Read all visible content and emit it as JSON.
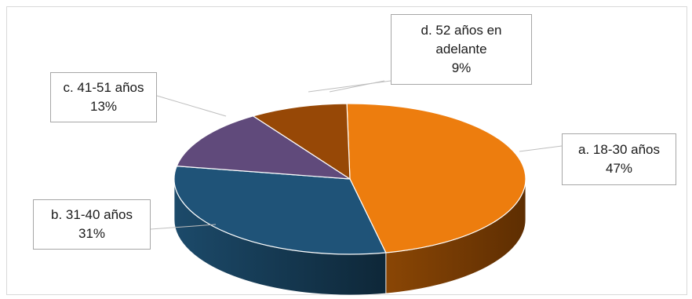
{
  "chart_data": {
    "type": "pie",
    "title": "",
    "style": "3d-pie",
    "legend": "none",
    "slices": [
      {
        "category": "a. 18-30 años",
        "value": 47,
        "percent_label": "47%",
        "color": "#ED7D0E"
      },
      {
        "category": "b. 31-40 años",
        "value": 31,
        "percent_label": "31%",
        "color": "#1F5378"
      },
      {
        "category": "c. 41-51 años",
        "value": 13,
        "percent_label": "13%",
        "color": "#604A7B"
      },
      {
        "category": "d. 52 años en adelante",
        "category_lines": [
          "d. 52 años en",
          "adelante"
        ],
        "value": 9,
        "percent_label": "9%",
        "color": "#974806"
      }
    ]
  }
}
